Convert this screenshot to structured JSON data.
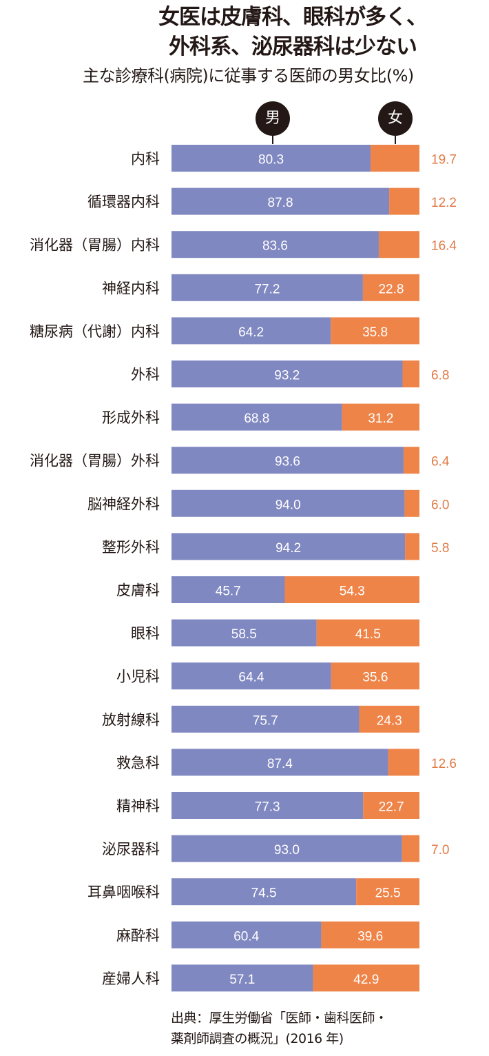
{
  "title_lines": [
    "女医は皮膚科、眼科が多く、",
    "外科系、泌尿器科は少ない"
  ],
  "subtitle": "主な診療科(病院)に従事する医師の男女比(%)",
  "legend": {
    "male": "男",
    "female": "女"
  },
  "colors": {
    "male": "#8088c1",
    "female": "#ef8449",
    "female_outside_label": "#e07a45",
    "text": "#231815"
  },
  "source": [
    "出典：厚生労働省「医師・歯科医師・",
    "薬剤師調査の概況」(2016 年)"
  ],
  "chart_data": {
    "type": "bar",
    "orientation": "horizontal",
    "stacked": true,
    "title": "女医は皮膚科、眼科が多く、外科系、泌尿器科は少ない",
    "subtitle": "主な診療科(病院)に従事する医師の男女比(%)",
    "xlabel": "",
    "ylabel": "",
    "xlim": [
      0,
      100
    ],
    "grid": false,
    "legend_position": "top",
    "categories": [
      "内科",
      "循環器内科",
      "消化器（胃腸）内科",
      "神経内科",
      "糖尿病（代謝）内科",
      "外科",
      "形成外科",
      "消化器（胃腸）外科",
      "脳神経外科",
      "整形外科",
      "皮膚科",
      "眼科",
      "小児科",
      "放射線科",
      "救急科",
      "精神科",
      "泌尿器科",
      "耳鼻咽喉科",
      "麻酔科",
      "産婦人科"
    ],
    "series": [
      {
        "name": "男",
        "values": [
          80.3,
          87.8,
          83.6,
          77.2,
          64.2,
          93.2,
          68.8,
          93.6,
          94.0,
          94.2,
          45.7,
          58.5,
          64.4,
          75.7,
          87.4,
          77.3,
          93.0,
          74.5,
          60.4,
          57.1
        ]
      },
      {
        "name": "女",
        "values": [
          19.7,
          12.2,
          16.4,
          22.8,
          35.8,
          6.8,
          31.2,
          6.4,
          6.0,
          5.8,
          54.3,
          41.5,
          35.6,
          24.3,
          12.6,
          22.7,
          7.0,
          25.5,
          39.6,
          42.9
        ]
      }
    ],
    "value_labels_male": [
      "80.3",
      "87.8",
      "83.6",
      "77.2",
      "64.2",
      "93.2",
      "68.8",
      "93.6",
      "94.0",
      "94.2",
      "45.7",
      "58.5",
      "64.4",
      "75.7",
      "87.4",
      "77.3",
      "93.0",
      "74.5",
      "60.4",
      "57.1"
    ],
    "value_labels_female": [
      "19.7",
      "12.2",
      "16.4",
      "22.8",
      "35.8",
      "6.8",
      "31.2",
      "6.4",
      "6.0",
      "5.8",
      "54.3",
      "41.5",
      "35.6",
      "24.3",
      "12.6",
      "22.7",
      "7.0",
      "25.5",
      "39.6",
      "42.9"
    ]
  }
}
